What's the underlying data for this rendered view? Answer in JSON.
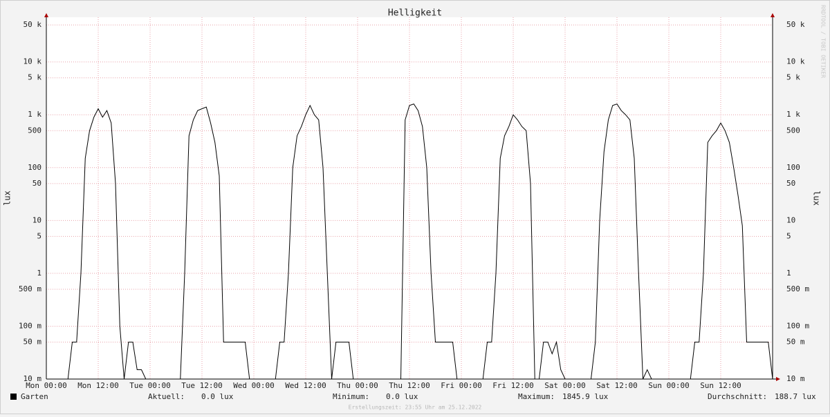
{
  "chart_data": {
    "type": "line",
    "title": "Helligkeit",
    "y_label": "lux",
    "watermark": "RRDTOOL / TOBI OETIKER",
    "footer": "Erstellungszeit: 23:55 Uhr am 25.12.2022",
    "log_y": true,
    "grid": true,
    "xlim": [
      0,
      168
    ],
    "xticks": [
      {
        "value": 0,
        "label": "Mon 00:00"
      },
      {
        "value": 12,
        "label": "Mon 12:00"
      },
      {
        "value": 24,
        "label": "Tue 00:00"
      },
      {
        "value": 36,
        "label": "Tue 12:00"
      },
      {
        "value": 48,
        "label": "Wed 00:00"
      },
      {
        "value": 60,
        "label": "Wed 12:00"
      },
      {
        "value": 72,
        "label": "Thu 00:00"
      },
      {
        "value": 84,
        "label": "Thu 12:00"
      },
      {
        "value": 96,
        "label": "Fri 00:00"
      },
      {
        "value": 108,
        "label": "Fri 12:00"
      },
      {
        "value": 120,
        "label": "Sat 00:00"
      },
      {
        "value": 132,
        "label": "Sat 12:00"
      },
      {
        "value": 144,
        "label": "Sun 00:00"
      },
      {
        "value": 156,
        "label": "Sun 12:00"
      }
    ],
    "ylim": [
      0.01,
      70000
    ],
    "yticks": [
      {
        "value": 0.01,
        "label": "10 m"
      },
      {
        "value": 0.05,
        "label": "50 m"
      },
      {
        "value": 0.1,
        "label": "100 m"
      },
      {
        "value": 0.5,
        "label": "500 m"
      },
      1,
      5,
      10,
      50,
      100,
      500,
      {
        "value": 1000,
        "label": "1 k"
      },
      {
        "value": 5000,
        "label": "5 k"
      },
      {
        "value": 10000,
        "label": "10 k"
      },
      {
        "value": 50000,
        "label": "50 k"
      }
    ],
    "x": [
      0,
      1,
      2,
      3,
      4,
      5,
      6,
      7,
      8,
      9,
      10,
      11,
      12,
      13,
      14,
      15,
      16,
      17,
      18,
      19,
      20,
      21,
      22,
      23,
      24,
      25,
      26,
      27,
      28,
      29,
      30,
      31,
      32,
      33,
      34,
      35,
      36,
      37,
      38,
      39,
      40,
      41,
      42,
      43,
      44,
      45,
      46,
      47,
      48,
      49,
      50,
      51,
      52,
      53,
      54,
      55,
      56,
      57,
      58,
      59,
      60,
      61,
      62,
      63,
      64,
      65,
      66,
      67,
      68,
      69,
      70,
      71,
      72,
      73,
      74,
      75,
      76,
      77,
      78,
      79,
      80,
      81,
      82,
      83,
      84,
      85,
      86,
      87,
      88,
      89,
      90,
      91,
      92,
      93,
      94,
      95,
      96,
      97,
      98,
      99,
      100,
      101,
      102,
      103,
      104,
      105,
      106,
      107,
      108,
      109,
      110,
      111,
      112,
      113,
      114,
      115,
      116,
      117,
      118,
      119,
      120,
      121,
      122,
      123,
      124,
      125,
      126,
      127,
      128,
      129,
      130,
      131,
      132,
      133,
      134,
      135,
      136,
      137,
      138,
      139,
      140,
      141,
      142,
      143,
      144,
      145,
      146,
      147,
      148,
      149,
      150,
      151,
      152,
      153,
      154,
      155,
      156,
      157,
      158,
      159,
      160,
      161,
      162,
      163,
      164,
      165,
      166,
      167,
      168
    ],
    "series": [
      {
        "name": "Garten",
        "color": "#000000",
        "values": [
          0.01,
          0.01,
          0.01,
          0.01,
          0.01,
          0.01,
          0.05,
          0.05,
          1,
          150,
          500,
          900,
          1300,
          900,
          1200,
          700,
          50,
          0.1,
          0.01,
          0.05,
          0.05,
          0.015,
          0.015,
          0.01,
          0.01,
          0.01,
          0.01,
          0.01,
          0.01,
          0.01,
          0.01,
          0.01,
          1,
          400,
          800,
          1200,
          1300,
          1400,
          700,
          300,
          70,
          0.05,
          0.05,
          0.05,
          0.05,
          0.05,
          0.05,
          0.01,
          0.01,
          0.01,
          0.01,
          0.01,
          0.01,
          0.01,
          0.05,
          0.05,
          1,
          100,
          400,
          600,
          1000,
          1500,
          1000,
          800,
          100,
          1,
          0.01,
          0.05,
          0.05,
          0.05,
          0.05,
          0.01,
          0.01,
          0.01,
          0.01,
          0.01,
          0.01,
          0.01,
          0.01,
          0.01,
          0.01,
          0.01,
          0.01,
          800,
          1500,
          1600,
          1200,
          600,
          100,
          1,
          0.05,
          0.05,
          0.05,
          0.05,
          0.05,
          0.01,
          0.01,
          0.01,
          0.01,
          0.01,
          0.01,
          0.01,
          0.05,
          0.05,
          1,
          150,
          400,
          600,
          1000,
          800,
          600,
          500,
          50,
          0.01,
          0.01,
          0.05,
          0.05,
          0.03,
          0.05,
          0.015,
          0.01,
          0.01,
          0.01,
          0.01,
          0.01,
          0.01,
          0.01,
          0.05,
          10,
          200,
          800,
          1500,
          1600,
          1200,
          1000,
          800,
          150,
          1,
          0.01,
          0.015,
          0.01,
          0.01,
          0.01,
          0.01,
          0.01,
          0.01,
          0.01,
          0.01,
          0.01,
          0.01,
          0.05,
          0.05,
          1,
          300,
          400,
          500,
          700,
          500,
          300,
          100,
          30,
          8,
          0.05,
          0.05,
          0.05,
          0.05,
          0.05,
          0.05,
          0.01
        ]
      }
    ],
    "stats": [
      {
        "label": "Aktuell:",
        "value": "0.0 lux"
      },
      {
        "label": "Minimum:",
        "value": "0.0 lux"
      },
      {
        "label": "Maximum:",
        "value": "1845.9 lux"
      },
      {
        "label": "Durchschnitt:",
        "value": "188.7 lux"
      }
    ]
  }
}
